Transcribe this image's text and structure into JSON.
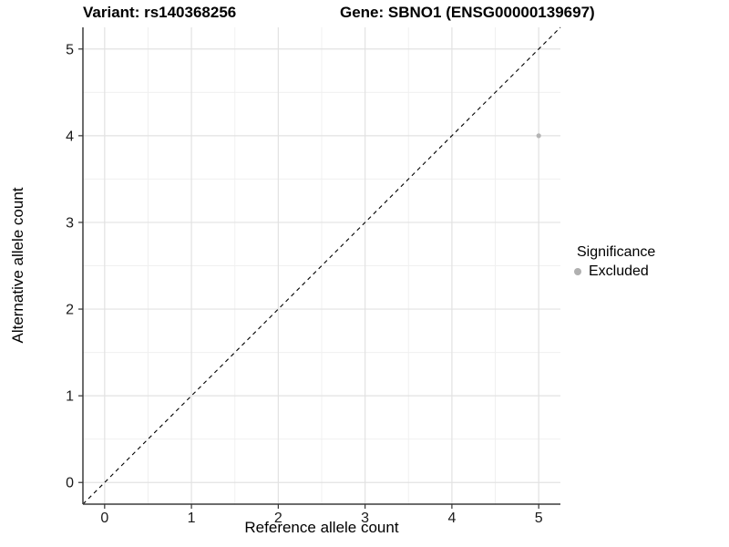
{
  "chart_data": {
    "type": "scatter",
    "title_left": "Variant: rs140368256",
    "title_right": "Gene: SBNO1 (ENSG00000139697)",
    "xlabel": "Reference allele count",
    "ylabel": "Alternative allele count",
    "xlim": [
      -0.25,
      5.25
    ],
    "ylim": [
      -0.25,
      5.25
    ],
    "x_ticks": [
      0,
      1,
      2,
      3,
      4,
      5
    ],
    "y_ticks": [
      0,
      1,
      2,
      3,
      4,
      5
    ],
    "x_minor_gridlines": [
      0.5,
      1.5,
      2.5,
      3.5,
      4.5
    ],
    "y_minor_gridlines": [
      0.5,
      1.5,
      2.5,
      3.5,
      4.5
    ],
    "grid": true,
    "legend_position": "right",
    "legend_title": "Significance",
    "series": [
      {
        "name": "Excluded",
        "color": "#b5b5b5",
        "points": [
          {
            "x": 5,
            "y": 4
          }
        ]
      }
    ],
    "reference_line": {
      "slope": 1,
      "intercept": 0,
      "style": "dashed",
      "color": "#000000"
    }
  },
  "style": {
    "background": "#ffffff",
    "grid_major_color": "#e2e2e2",
    "grid_minor_color": "#f0f0f0",
    "axis_line_color": "#3b3b3b",
    "tick_mark_color": "#333333",
    "tick_label_color": "#1a1a1a",
    "point_radius": 2.6,
    "legend_dot_color": "#b0b0b0"
  }
}
